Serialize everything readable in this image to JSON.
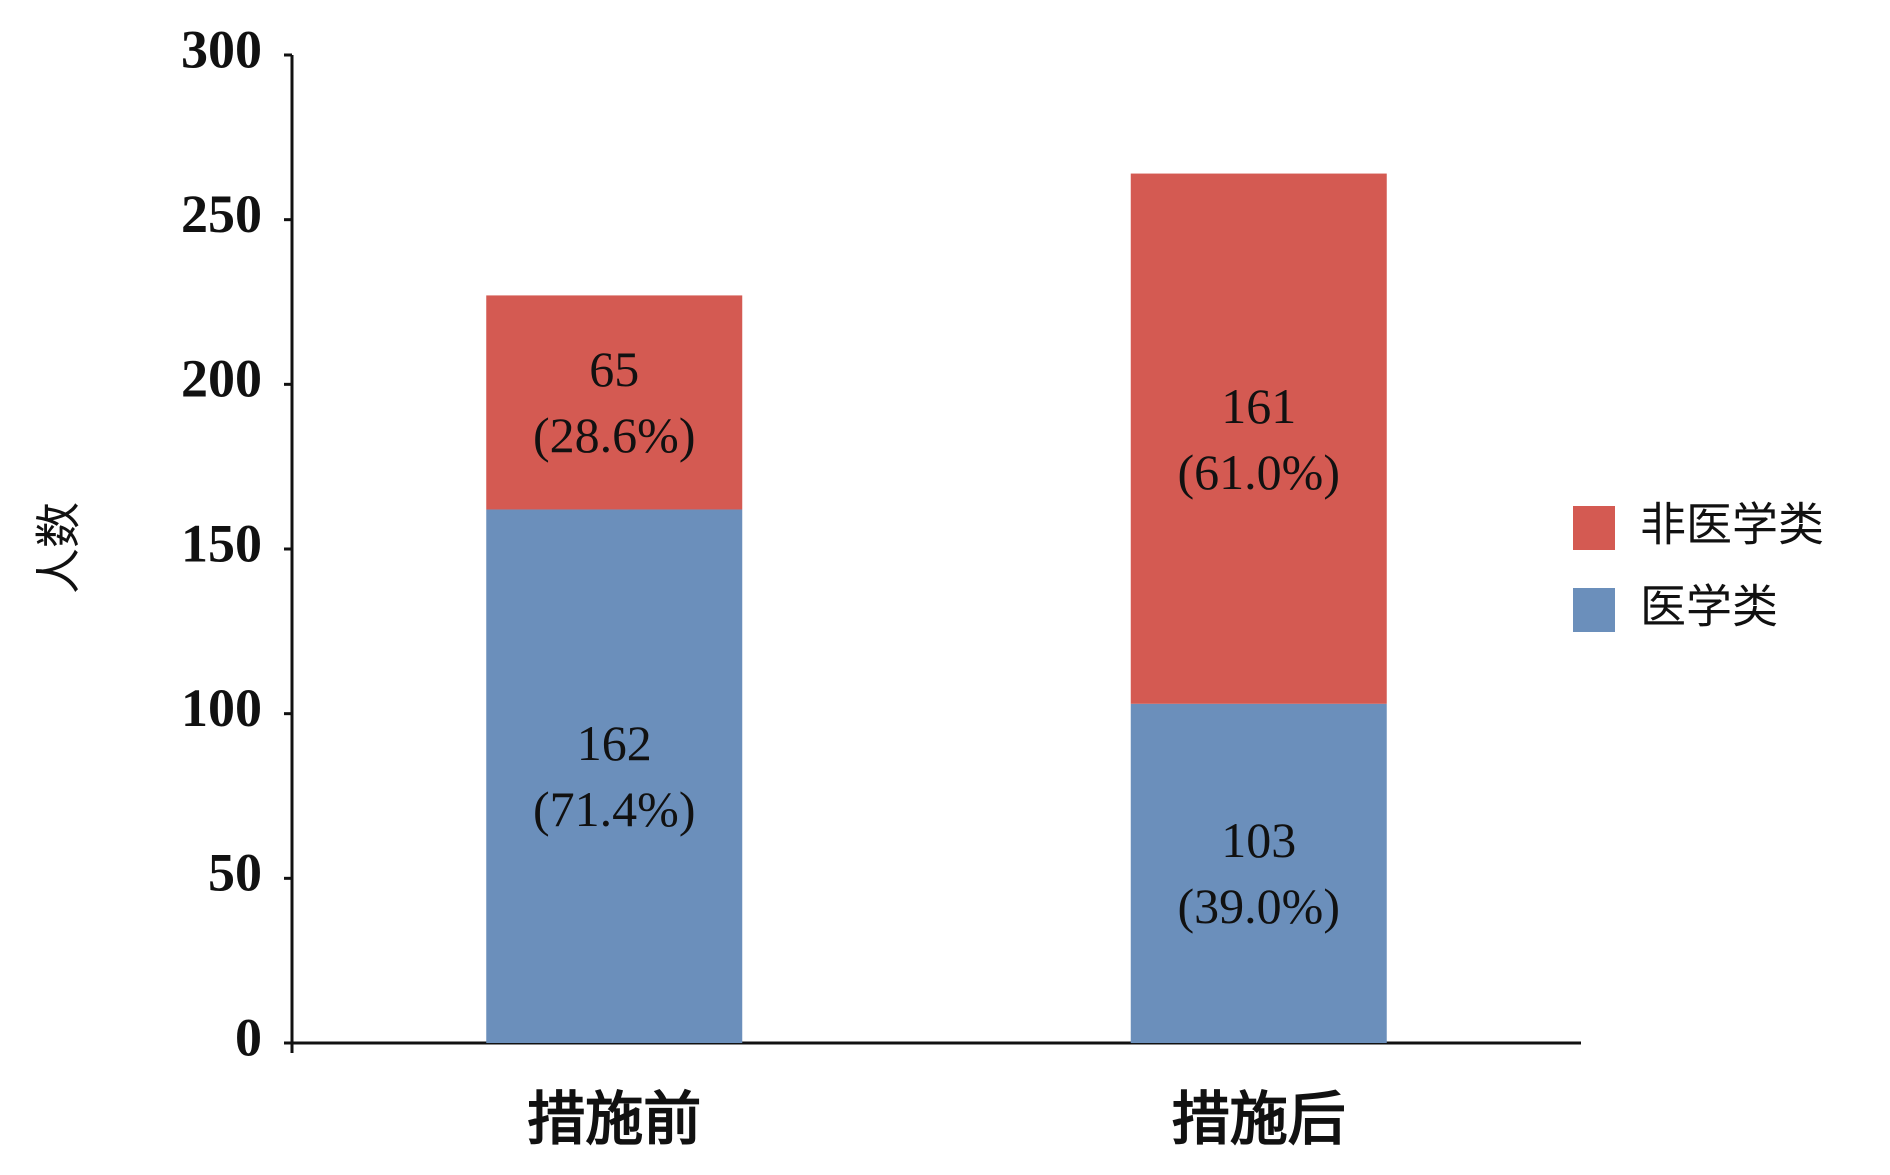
{
  "chart_data": {
    "type": "stacked_bar",
    "categories": [
      "措施前",
      "措施后"
    ],
    "series": [
      {
        "name": "医学类",
        "color": "#6b8fbb",
        "values": [
          162,
          103
        ],
        "value_labels": [
          "162\n(71.4%)",
          "103\n(39.0%)"
        ]
      },
      {
        "name": "非医学类",
        "color": "#d45a52",
        "values": [
          65,
          161
        ],
        "value_labels": [
          "65\n(28.6%)",
          "161\n(61.0%)"
        ]
      }
    ],
    "y_label": "人数",
    "ylim": [
      0,
      300
    ],
    "yticks": [
      0,
      50,
      100,
      150,
      200,
      250,
      300
    ],
    "grid": false,
    "legend": "right"
  }
}
